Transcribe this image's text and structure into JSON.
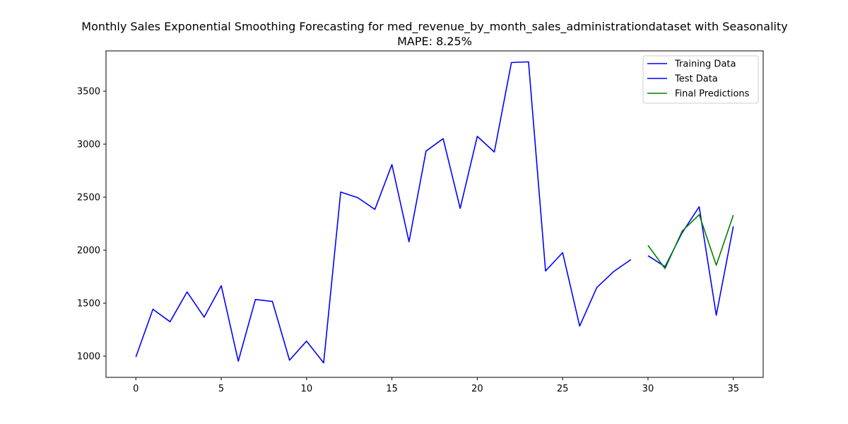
{
  "chart_data": {
    "type": "line",
    "title": "Monthly Sales Exponential Smoothing Forecasting for med_revenue_by_month_sales_administrationdataset with Seasonality",
    "subtitle": "MAPE: 8.25%",
    "xlim": [
      -1.75,
      36.75
    ],
    "ylim": [
      800,
      3880
    ],
    "x_ticks": [
      0,
      5,
      10,
      15,
      20,
      25,
      30,
      35
    ],
    "y_ticks": [
      1000,
      1500,
      2000,
      2500,
      3000,
      3500
    ],
    "grid": false,
    "legend_position": "top-right",
    "series": [
      {
        "name": "Training Data",
        "color": "#0000ff",
        "x": [
          0,
          1,
          2,
          3,
          4,
          5,
          6,
          7,
          8,
          9,
          10,
          11,
          12,
          13,
          14,
          15,
          16,
          17,
          18,
          19,
          20,
          21,
          22,
          23,
          24,
          25,
          26,
          27,
          28,
          29
        ],
        "values": [
          993,
          1443,
          1325,
          1606,
          1368,
          1665,
          953,
          1535,
          1516,
          962,
          1142,
          937,
          2548,
          2495,
          2385,
          2807,
          2079,
          2935,
          3052,
          2394,
          3074,
          2926,
          3770,
          3777,
          1804,
          1977,
          1284,
          1647,
          1799,
          1911
        ]
      },
      {
        "name": "Test Data",
        "color": "#0000ff",
        "x": [
          30,
          31,
          32,
          33,
          34,
          35
        ],
        "values": [
          1948,
          1845,
          2164,
          2409,
          1386,
          2224
        ]
      },
      {
        "name": "Final Predictions",
        "color": "#008000",
        "x": [
          30,
          31,
          32,
          33,
          34,
          35
        ],
        "values": [
          2046,
          1826,
          2179,
          2335,
          1858,
          2331
        ]
      }
    ]
  }
}
